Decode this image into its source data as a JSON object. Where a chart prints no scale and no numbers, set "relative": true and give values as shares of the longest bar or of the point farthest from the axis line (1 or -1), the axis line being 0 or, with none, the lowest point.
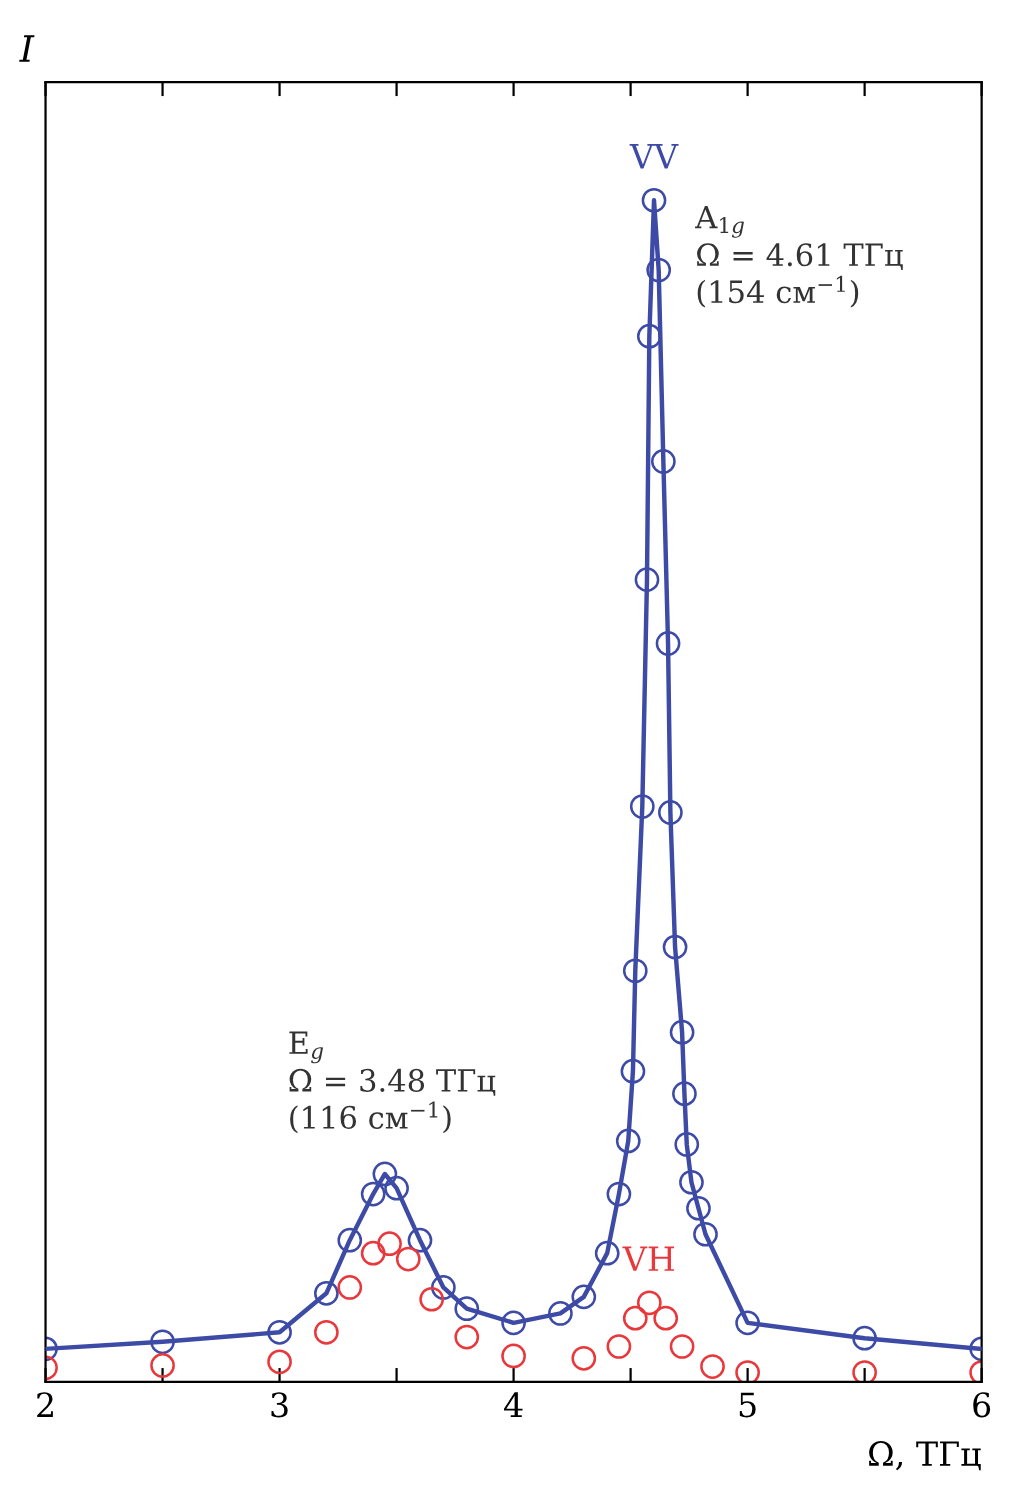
{
  "chart_data": {
    "type": "scatter",
    "relative": true,
    "xlabel": "Ω, ТГц",
    "ylabel": "I",
    "xlim": [
      2,
      6
    ],
    "xticks": [
      2,
      {
        "value": 2.5,
        "label": null
      },
      3,
      {
        "value": 3.5,
        "label": null
      },
      4,
      {
        "value": 4.5,
        "label": null
      },
      5,
      {
        "value": 5.5,
        "label": null
      },
      6
    ],
    "marker": "circle",
    "grid": false,
    "legend": false,
    "series": [
      {
        "name": "VV",
        "color": "#3d4ba6",
        "x": [
          2.0,
          2.5,
          3.0,
          3.2,
          3.3,
          3.4,
          3.45,
          3.5,
          3.6,
          3.7,
          3.8,
          4.0,
          4.2,
          4.3,
          4.4,
          4.45,
          4.49,
          4.51,
          4.52,
          4.55,
          4.57,
          4.58,
          4.6,
          4.62,
          4.64,
          4.66,
          4.67,
          4.69,
          4.72,
          4.73,
          4.74,
          4.76,
          4.79,
          4.82,
          5.0,
          5.5,
          6.0
        ],
        "values": [
          0.028,
          0.034,
          0.042,
          0.075,
          0.12,
          0.159,
          0.176,
          0.164,
          0.12,
          0.08,
          0.062,
          0.05,
          0.058,
          0.072,
          0.109,
          0.159,
          0.204,
          0.263,
          0.348,
          0.487,
          0.679,
          0.885,
          1.0,
          0.941,
          0.779,
          0.625,
          0.482,
          0.368,
          0.296,
          0.244,
          0.201,
          0.169,
          0.147,
          0.125,
          0.05,
          0.037,
          0.028
        ]
      },
      {
        "color": "#3d4ba6",
        "type": "line",
        "marker": "none",
        "x": [
          2.0,
          2.5,
          3.0,
          3.2,
          3.3,
          3.4,
          3.45,
          3.5,
          3.6,
          3.7,
          3.8,
          4.0,
          4.2,
          4.3,
          4.4,
          4.45,
          4.49,
          4.51,
          4.52,
          4.55,
          4.57,
          4.58,
          4.6,
          4.62,
          4.64,
          4.66,
          4.67,
          4.69,
          4.72,
          4.73,
          4.74,
          4.76,
          4.79,
          4.82,
          5.0,
          5.5,
          6.0
        ],
        "values": [
          0.028,
          0.034,
          0.042,
          0.075,
          0.12,
          0.159,
          0.176,
          0.164,
          0.12,
          0.08,
          0.062,
          0.05,
          0.058,
          0.072,
          0.109,
          0.159,
          0.204,
          0.263,
          0.348,
          0.487,
          0.679,
          0.885,
          1.0,
          0.941,
          0.779,
          0.625,
          0.482,
          0.368,
          0.296,
          0.244,
          0.201,
          0.169,
          0.147,
          0.125,
          0.05,
          0.037,
          0.028
        ]
      },
      {
        "name": "VH",
        "color": "#e8383c",
        "x": [
          2.0,
          2.5,
          3.0,
          3.2,
          3.3,
          3.4,
          3.47,
          3.55,
          3.65,
          3.8,
          4.0,
          4.3,
          4.45,
          4.52,
          4.58,
          4.65,
          4.72,
          4.85,
          5.0,
          5.5,
          6.0
        ],
        "values": [
          0.012,
          0.014,
          0.017,
          0.042,
          0.08,
          0.109,
          0.117,
          0.104,
          0.07,
          0.038,
          0.022,
          0.02,
          0.03,
          0.054,
          0.067,
          0.054,
          0.03,
          0.013,
          0.008,
          0.008,
          0.008
        ]
      }
    ],
    "annotations": [
      {
        "text": "A$_{1g}$\nΩ = 4.61 ТГц\n(154 см$^{−1}$)",
        "x": 4.61,
        "y": 1.0
      },
      {
        "text": "E$_{g}$\nΩ = 3.48 ТГц\n(116 см$^{−1}$)",
        "x": 3.48,
        "y": 0.176
      }
    ]
  }
}
